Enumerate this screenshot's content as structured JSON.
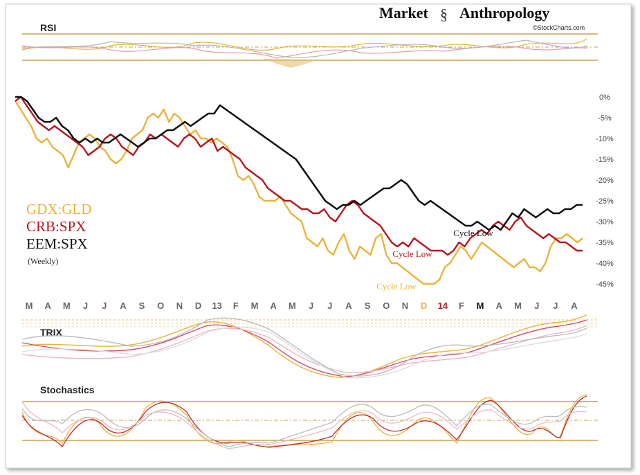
{
  "brand": {
    "title_first": "Market",
    "title_second": "Anthropology",
    "source": "©StockCharts.com"
  },
  "panels": {
    "rsi_label": "RSI",
    "trix_label": "TRIX",
    "stoch_label": "Stochastics"
  },
  "legend": {
    "items": [
      {
        "label": "GDX:GLD",
        "color": "#E8B43C"
      },
      {
        "label": "CRB:SPX",
        "color": "#B5161E"
      },
      {
        "label": "EEM:SPX",
        "color": "#111111"
      }
    ],
    "note": "(Weekly)"
  },
  "annotations": [
    {
      "text": "Cycle Low",
      "color": "#E8B43C",
      "x": 64.5,
      "y": -44
    },
    {
      "text": "Cycle Low",
      "color": "#B5161E",
      "x": 67.2,
      "y": -38.5
    },
    {
      "text": "Cycle Low",
      "color": "#111111",
      "x": 77.5,
      "y": -33.5
    }
  ],
  "chart_data": {
    "type": "line",
    "ylim": [
      -47,
      2
    ],
    "y_ticks": [
      "0%",
      "-5%",
      "-10%",
      "-15%",
      "-20%",
      "-25%",
      "-30%",
      "-35%",
      "-40%",
      "-45%"
    ],
    "y_tick_values": [
      0,
      -5,
      -10,
      -15,
      -20,
      -25,
      -30,
      -35,
      -40,
      -45
    ],
    "x_range": [
      0,
      96
    ],
    "x_ticks": [
      {
        "label": "M",
        "x": 2,
        "color": "#666666"
      },
      {
        "label": "A",
        "x": 6.3,
        "color": "#666666"
      },
      {
        "label": "M",
        "x": 10.6,
        "color": "#666666"
      },
      {
        "label": "J",
        "x": 14.9,
        "color": "#666666"
      },
      {
        "label": "J",
        "x": 19.2,
        "color": "#666666"
      },
      {
        "label": "A",
        "x": 23.5,
        "color": "#666666"
      },
      {
        "label": "S",
        "x": 27.8,
        "color": "#666666"
      },
      {
        "label": "O",
        "x": 32.1,
        "color": "#666666"
      },
      {
        "label": "N",
        "x": 36.4,
        "color": "#666666"
      },
      {
        "label": "D",
        "x": 40.7,
        "color": "#666666"
      },
      {
        "label": "13",
        "x": 45,
        "color": "#666666"
      },
      {
        "label": "F",
        "x": 49.3,
        "color": "#666666"
      },
      {
        "label": "M",
        "x": 53.6,
        "color": "#666666"
      },
      {
        "label": "A",
        "x": 57.9,
        "color": "#666666"
      },
      {
        "label": "M",
        "x": 62.2,
        "color": "#666666"
      },
      {
        "label": "J",
        "x": 66.5,
        "color": "#666666"
      },
      {
        "label": "J",
        "x": 70.8,
        "color": "#666666"
      },
      {
        "label": "A",
        "x": 75.1,
        "color": "#666666"
      },
      {
        "label": "S",
        "x": 79.4,
        "color": "#666666"
      },
      {
        "label": "O",
        "x": 83.7,
        "color": "#666666"
      },
      {
        "label": "N",
        "x": 88,
        "color": "#666666"
      },
      {
        "label": "D",
        "x": 92.3,
        "color": "#E8B43C"
      }
    ],
    "x_ticks_tail": [
      {
        "label": "14",
        "color": "#B5161E"
      },
      {
        "label": "F",
        "color": "#666666"
      },
      {
        "label": "M",
        "color": "#111111"
      },
      {
        "label": "A",
        "color": "#666666"
      },
      {
        "label": "M",
        "color": "#666666"
      },
      {
        "label": "J",
        "color": "#666666"
      },
      {
        "label": "J",
        "color": "#666666"
      },
      {
        "label": "A",
        "color": "#666666"
      }
    ],
    "series": [
      {
        "name": "GDX:GLD",
        "color": "#E8B43C",
        "values": [
          -1,
          -3,
          -5,
          -7,
          -10,
          -11,
          -10,
          -12,
          -13,
          -14,
          -17,
          -14,
          -11,
          -10,
          -9,
          -10,
          -12,
          -13,
          -15,
          -16,
          -15,
          -13,
          -10,
          -9,
          -8,
          -5,
          -4,
          -5,
          -3,
          -6,
          -4,
          -5,
          -7,
          -9,
          -8,
          -10,
          -10,
          -11,
          -10,
          -11,
          -12,
          -15,
          -19,
          -20,
          -19,
          -21,
          -24,
          -25,
          -25,
          -25,
          -24,
          -26,
          -28,
          -29,
          -30,
          -34,
          -35,
          -36,
          -34,
          -37,
          -38,
          -35,
          -33,
          -37,
          -39,
          -36,
          -37,
          -38,
          -34,
          -33,
          -38,
          -40,
          -40,
          -41,
          -42,
          -43,
          -44,
          -45,
          -45,
          -45,
          -44,
          -41,
          -40,
          -38,
          -36,
          -37,
          -39,
          -37,
          -35,
          -36,
          -37,
          -38,
          -39,
          -40,
          -41,
          -40,
          -39,
          -41,
          -41,
          -42,
          -40,
          -36,
          -34,
          -34,
          -33,
          -34,
          -35,
          -34
        ],
        "values_note": ""
      },
      {
        "name": "CRB:SPX",
        "color": "#B5161E",
        "values": [
          -1,
          0,
          -2,
          -4,
          -6,
          -7,
          -8,
          -7,
          -8,
          -9,
          -10,
          -11,
          -12,
          -14,
          -13,
          -12,
          -10,
          -9,
          -10,
          -12,
          -13,
          -14,
          -12,
          -11,
          -9,
          -10,
          -9,
          -10,
          -11,
          -12,
          -10,
          -9,
          -10,
          -12,
          -11,
          -10,
          -13,
          -12,
          -13,
          -14,
          -15,
          -17,
          -18,
          -19,
          -20,
          -22,
          -23,
          -24,
          -25,
          -25,
          -26,
          -27,
          -27,
          -28,
          -28,
          -27,
          -29,
          -30,
          -28,
          -26,
          -25,
          -26,
          -28,
          -29,
          -30,
          -31,
          -33,
          -35,
          -36,
          -35,
          -36,
          -34,
          -35,
          -36,
          -37,
          -37,
          -37,
          -38,
          -37,
          -35,
          -36,
          -34,
          -33,
          -32,
          -33,
          -31,
          -30,
          -31,
          -32,
          -30,
          -29,
          -31,
          -32,
          -33,
          -34,
          -33,
          -34,
          -35,
          -35,
          -36,
          -37,
          -37
        ],
        "values_note": ""
      },
      {
        "name": "EEM:SPX",
        "color": "#111111",
        "values": [
          0,
          0,
          -1,
          -3,
          -5,
          -6,
          -6,
          -5,
          -7,
          -8,
          -10,
          -11,
          -10,
          -11,
          -10,
          -11,
          -11,
          -10,
          -9,
          -10,
          -11,
          -12,
          -11,
          -10,
          -10,
          -9,
          -8,
          -8,
          -7,
          -6,
          -7,
          -6,
          -5,
          -4,
          -4,
          -2,
          -3,
          -4,
          -5,
          -6,
          -7,
          -8,
          -9,
          -10,
          -11,
          -12,
          -13,
          -14,
          -15,
          -17,
          -19,
          -21,
          -23,
          -25,
          -26,
          -27,
          -26,
          -26,
          -25,
          -26,
          -25,
          -24,
          -23,
          -22,
          -22,
          -21,
          -20,
          -21,
          -23,
          -25,
          -26,
          -25,
          -26,
          -27,
          -28,
          -29,
          -30,
          -31,
          -31,
          -30,
          -31,
          -32,
          -31,
          -32,
          -30,
          -28,
          -29,
          -27,
          -28,
          -29,
          -28,
          -27,
          -28,
          -28,
          -27,
          -27,
          -26,
          -26
        ]
      }
    ]
  }
}
